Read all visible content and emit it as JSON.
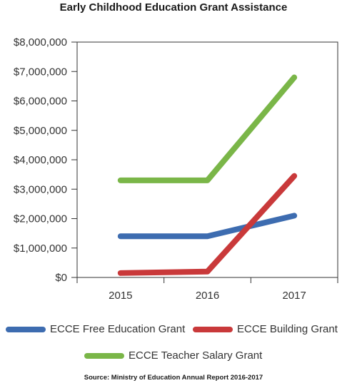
{
  "chart_data": {
    "type": "line",
    "title": "Early Childhood Education Grant Assistance",
    "x": [
      "2015",
      "2016",
      "2017"
    ],
    "ylim": [
      0,
      8000000
    ],
    "yticks": [
      "$0",
      "$1,000,000",
      "$2,000,000",
      "$3,000,000",
      "$4,000,000",
      "$5,000,000",
      "$6,000,000",
      "$7,000,000",
      "$8,000,000"
    ],
    "grid": false,
    "legend_position": "bottom",
    "series": [
      {
        "name": "ECCE Free Education Grant",
        "color": "#3d6cb0",
        "values": [
          1400000,
          1400000,
          2100000
        ]
      },
      {
        "name": "ECCE Building Grant",
        "color": "#c9393a",
        "values": [
          150000,
          200000,
          3450000
        ]
      },
      {
        "name": "ECCE Teacher Salary Grant",
        "color": "#7ab648",
        "values": [
          3300000,
          3300000,
          6800000
        ]
      }
    ],
    "source": "Source: Ministry of Education Annual Report 2016-2017"
  }
}
